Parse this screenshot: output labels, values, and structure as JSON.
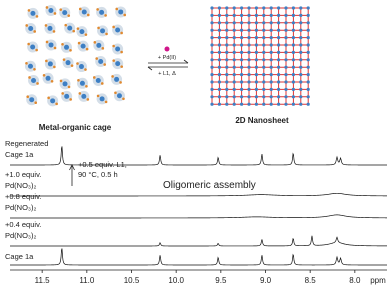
{
  "scheme": {
    "left_label": "Metal-organic cage",
    "right_label": "2D Nanosheet",
    "forward": "+ Pd(II)",
    "reverse": "+ L1, Δ"
  },
  "chart_data": {
    "type": "nmr",
    "xlabel": "ppm",
    "xlim": [
      11.86,
      7.64
    ],
    "xticks": [
      11.5,
      {
        "value": 11,
        "label": "11.0"
      },
      10.5,
      {
        "value": 10,
        "label": "10.0"
      },
      9.5,
      {
        "value": 9,
        "label": "9.0"
      },
      8.5,
      {
        "value": 8,
        "label": "8.0"
      }
    ],
    "annotation": [
      "+0.5 equiv. L1,",
      "90 °C, 0.5 h"
    ],
    "region_label": "Oligomeric assembly",
    "series": [
      {
        "name": [
          "Regenerated",
          "Cage 1a"
        ],
        "peaks": [
          11.28,
          10.18,
          9.53,
          9.04,
          8.69,
          8.2,
          8.16
        ],
        "intensities": [
          0.9,
          0.45,
          0.35,
          0.5,
          0.55,
          0.35,
          0.3
        ],
        "widths": [
          0.008,
          0.008,
          0.008,
          0.008,
          0.008,
          0.01,
          0.01
        ]
      },
      {
        "name": [
          "+1.0 equiv.",
          "Pd(NO₃)₂"
        ],
        "peaks": [
          9.05,
          8.2
        ],
        "intensities": [
          0.06,
          0.12
        ],
        "widths": [
          0.2,
          0.12
        ]
      },
      {
        "name": [
          "+0.8 equiv.",
          "Pd(NO₃)₂"
        ],
        "peaks": [
          9.1,
          8.2
        ],
        "intensities": [
          0.05,
          0.14
        ],
        "widths": [
          0.2,
          0.12
        ]
      },
      {
        "name": [
          "+0.4 equiv.",
          "Pd(NO₃)₂"
        ],
        "peaks": [
          10.18,
          9.53,
          9.04,
          8.69,
          8.48,
          8.2,
          8.2
        ],
        "intensities": [
          0.15,
          0.12,
          0.3,
          0.35,
          0.45,
          0.25,
          0.15
        ],
        "widths": [
          0.008,
          0.008,
          0.008,
          0.008,
          0.008,
          0.01,
          0.1
        ]
      },
      {
        "name": [
          "Cage 1a"
        ],
        "peaks": [
          11.28,
          10.18,
          9.53,
          9.04,
          8.69,
          8.2,
          8.16
        ],
        "intensities": [
          0.8,
          0.45,
          0.35,
          0.45,
          0.5,
          0.35,
          0.3
        ],
        "widths": [
          0.008,
          0.008,
          0.008,
          0.008,
          0.008,
          0.01,
          0.01
        ]
      }
    ]
  }
}
